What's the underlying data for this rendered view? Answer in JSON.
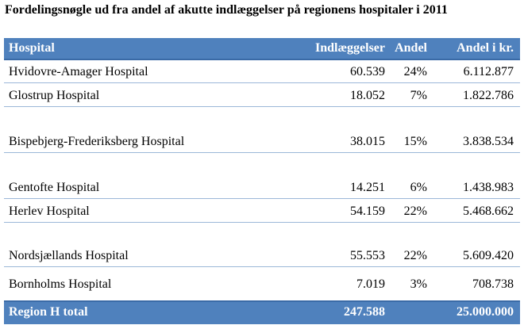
{
  "title": "Fordelingsnøgle ud fra andel af akutte indlæggelser på regionens hospitaler i 2011",
  "header": {
    "hospital": "Hospital",
    "admissions": "Indlæggelser",
    "share": "Andel",
    "share_kr": "Andel i kr."
  },
  "rows": [
    {
      "name": "Hvidovre-Amager Hospital",
      "admissions": "60.539",
      "share": "24%",
      "share_kr": "6.112.877"
    },
    {
      "name": "Glostrup Hospital",
      "admissions": "18.052",
      "share": "7%",
      "share_kr": "1.822.786"
    },
    {
      "name": "Bispebjerg-Frederiksberg Hospital",
      "admissions": "38.015",
      "share": "15%",
      "share_kr": "3.838.534"
    },
    {
      "name": "Gentofte Hospital",
      "admissions": "14.251",
      "share": "6%",
      "share_kr": "1.438.983"
    },
    {
      "name": "Herlev Hospital",
      "admissions": "54.159",
      "share": "22%",
      "share_kr": "5.468.662"
    },
    {
      "name": "Nordsjællands Hospital",
      "admissions": "55.553",
      "share": "22%",
      "share_kr": "5.609.420"
    },
    {
      "name": "Bornholms Hospital",
      "admissions": "7.019",
      "share": "3%",
      "share_kr": "708.738"
    }
  ],
  "total": {
    "label": "Region H total",
    "admissions": "247.588",
    "share_kr": "25.000.000"
  },
  "colors": {
    "header_bg": "#4f81bd",
    "header_text": "#ffffff",
    "row_separator": "#9bb7d8"
  }
}
